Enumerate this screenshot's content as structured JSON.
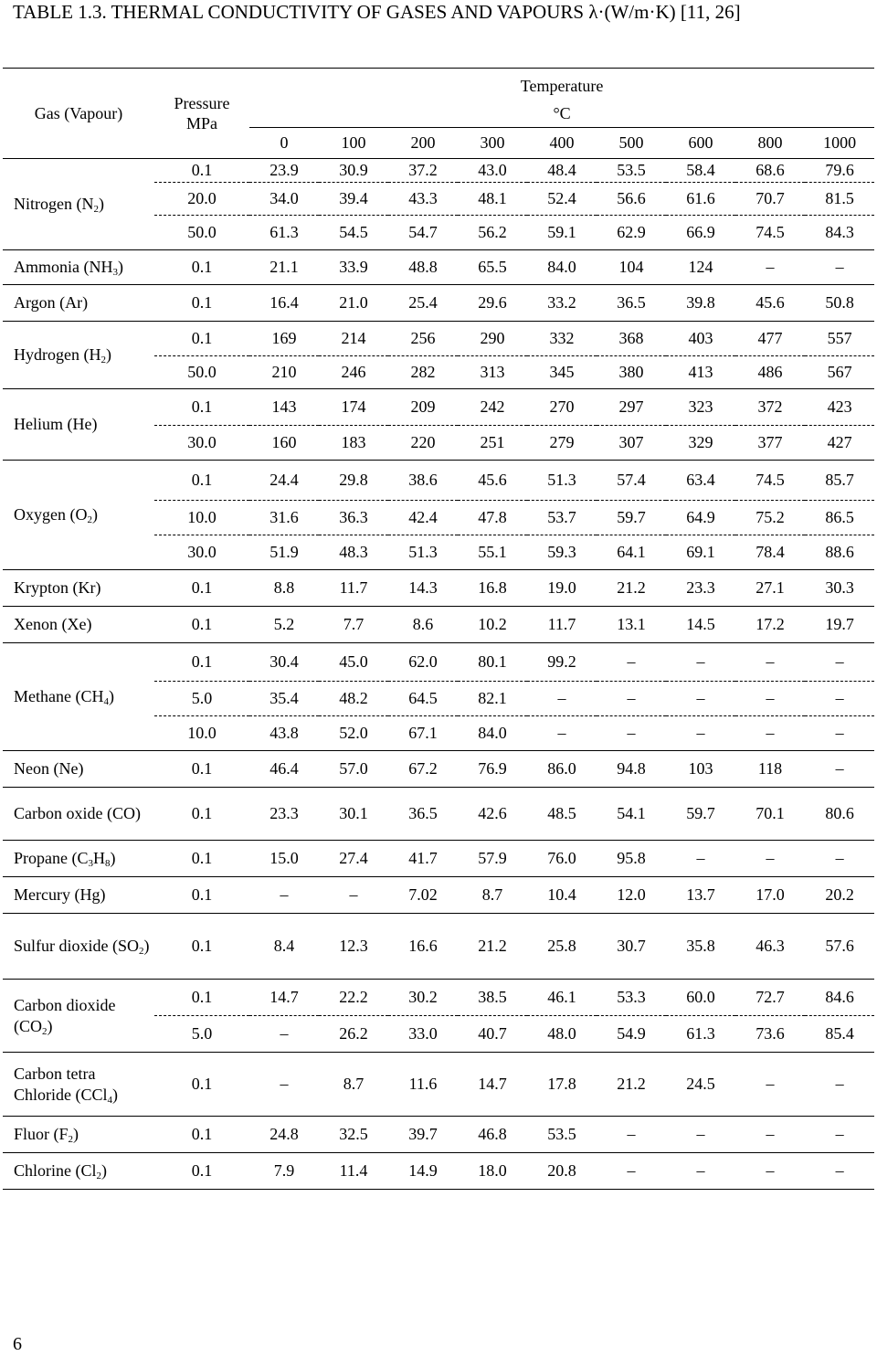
{
  "title": "TABLE 1.3. THERMAL CONDUCTIVITY OF GASES AND VAPOURS λ·(W/m·K) [11, 26]",
  "header": {
    "gas": "Gas (Vapour)",
    "pressure": [
      "Pressure",
      "MPa"
    ],
    "temperature": [
      "Temperature",
      "°C"
    ],
    "temperatures": [
      "0",
      "100",
      "200",
      "300",
      "400",
      "500",
      "600",
      "800",
      "1000"
    ]
  },
  "groups": [
    {
      "name": "Nitrogen (N",
      "sub": "2",
      "suffix": ")",
      "rows": [
        {
          "p": "0.1",
          "v": [
            "23.9",
            "30.9",
            "37.2",
            "43.0",
            "48.4",
            "53.5",
            "58.4",
            "68.6",
            "79.6"
          ]
        },
        {
          "p": "20.0",
          "v": [
            "34.0",
            "39.4",
            "43.3",
            "48.1",
            "52.4",
            "56.6",
            "61.6",
            "70.7",
            "81.5"
          ]
        },
        {
          "p": "50.0",
          "v": [
            "61.3",
            "54.5",
            "54.7",
            "56.2",
            "59.1",
            "62.9",
            "66.9",
            "74.5",
            "84.3"
          ]
        }
      ]
    },
    {
      "name": "Ammonia (NH",
      "sub": "3",
      "suffix": ")",
      "rows": [
        {
          "p": "0.1",
          "v": [
            "21.1",
            "33.9",
            "48.8",
            "65.5",
            "84.0",
            "104",
            "124",
            "–",
            "–"
          ]
        }
      ]
    },
    {
      "name": "Argon (Ar)",
      "rows": [
        {
          "p": "0.1",
          "v": [
            "16.4",
            "21.0",
            "25.4",
            "29.6",
            "33.2",
            "36.5",
            "39.8",
            "45.6",
            "50.8"
          ]
        }
      ]
    },
    {
      "name": "Hydrogen (H",
      "sub": "2",
      "suffix": ")",
      "rows": [
        {
          "p": "0.1",
          "v": [
            "169",
            "214",
            "256",
            "290",
            "332",
            "368",
            "403",
            "477",
            "557"
          ]
        },
        {
          "p": "50.0",
          "v": [
            "210",
            "246",
            "282",
            "313",
            "345",
            "380",
            "413",
            "486",
            "567"
          ]
        }
      ]
    },
    {
      "name": "Helium (He)",
      "rows": [
        {
          "p": "0.1",
          "v": [
            "143",
            "174",
            "209",
            "242",
            "270",
            "297",
            "323",
            "372",
            "423"
          ]
        },
        {
          "p": "30.0",
          "v": [
            "160",
            "183",
            "220",
            "251",
            "279",
            "307",
            "329",
            "377",
            "427"
          ]
        }
      ]
    },
    {
      "name": "Oxygen (O",
      "sub": "2",
      "suffix": ")",
      "rows": [
        {
          "p": "0.1",
          "v": [
            "24.4",
            "29.8",
            "38.6",
            "45.6",
            "51.3",
            "57.4",
            "63.4",
            "74.5",
            "85.7"
          ]
        },
        {
          "p": "10.0",
          "v": [
            "31.6",
            "36.3",
            "42.4",
            "47.8",
            "53.7",
            "59.7",
            "64.9",
            "75.2",
            "86.5"
          ]
        },
        {
          "p": "30.0",
          "v": [
            "51.9",
            "48.3",
            "51.3",
            "55.1",
            "59.3",
            "64.1",
            "69.1",
            "78.4",
            "88.6"
          ]
        }
      ]
    },
    {
      "name": "Krypton (Kr)",
      "rows": [
        {
          "p": "0.1",
          "v": [
            "8.8",
            "11.7",
            "14.3",
            "16.8",
            "19.0",
            "21.2",
            "23.3",
            "27.1",
            "30.3"
          ]
        }
      ]
    },
    {
      "name": "Xenon (Xe)",
      "rows": [
        {
          "p": "0.1",
          "v": [
            "5.2",
            "7.7",
            "8.6",
            "10.2",
            "11.7",
            "13.1",
            "14.5",
            "17.2",
            "19.7"
          ]
        }
      ]
    },
    {
      "name": "Methane (CH",
      "sub": "4",
      "suffix": ")",
      "rows": [
        {
          "p": "0.1",
          "v": [
            "30.4",
            "45.0",
            "62.0",
            "80.1",
            "99.2",
            "–",
            "–",
            "–",
            "–"
          ]
        },
        {
          "p": "5.0",
          "v": [
            "35.4",
            "48.2",
            "64.5",
            "82.1",
            "–",
            "–",
            "–",
            "–",
            "–"
          ]
        },
        {
          "p": "10.0",
          "v": [
            "43.8",
            "52.0",
            "67.1",
            "84.0",
            "–",
            "–",
            "–",
            "–",
            "–"
          ]
        }
      ]
    },
    {
      "name": "Neon (Ne)",
      "rows": [
        {
          "p": "0.1",
          "v": [
            "46.4",
            "57.0",
            "67.2",
            "76.9",
            "86.0",
            "94.8",
            "103",
            "118",
            "–"
          ]
        }
      ]
    },
    {
      "name": "Carbon oxide (CO)",
      "rows": [
        {
          "p": "0.1",
          "v": [
            "23.3",
            "30.1",
            "36.5",
            "42.6",
            "48.5",
            "54.1",
            "59.7",
            "70.1",
            "80.6"
          ]
        }
      ]
    },
    {
      "name": "Propane (C",
      "sub": "3",
      "mid": "H",
      "sub2": "8",
      "suffix": ")",
      "rows": [
        {
          "p": "0.1",
          "v": [
            "15.0",
            "27.4",
            "41.7",
            "57.9",
            "76.0",
            "95.8",
            "–",
            "–",
            "–"
          ]
        }
      ]
    },
    {
      "name": "Mercury (Hg)",
      "rows": [
        {
          "p": "0.1",
          "v": [
            "–",
            "–",
            "7.02",
            "8.7",
            "10.4",
            "12.0",
            "13.7",
            "17.0",
            "20.2"
          ]
        }
      ]
    },
    {
      "name": "Sulfur dioxide (SO",
      "sub": "2",
      "suffix": ")",
      "rows": [
        {
          "p": "0.1",
          "v": [
            "8.4",
            "12.3",
            "16.6",
            "21.2",
            "25.8",
            "30.7",
            "35.8",
            "46.3",
            "57.6"
          ]
        }
      ]
    },
    {
      "name": "Carbon dioxide (CO",
      "sub": "2",
      "suffix": ")",
      "rows": [
        {
          "p": "0.1",
          "v": [
            "14.7",
            "22.2",
            "30.2",
            "38.5",
            "46.1",
            "53.3",
            "60.0",
            "72.7",
            "84.6"
          ]
        },
        {
          "p": "5.0",
          "v": [
            "–",
            "26.2",
            "33.0",
            "40.7",
            "48.0",
            "54.9",
            "61.3",
            "73.6",
            "85.4"
          ]
        }
      ]
    },
    {
      "name": "Carbon tetra Chloride (CCl",
      "sub": "4",
      "suffix": ")",
      "rows": [
        {
          "p": "0.1",
          "v": [
            "–",
            "8.7",
            "11.6",
            "14.7",
            "17.8",
            "21.2",
            "24.5",
            "–",
            "–"
          ]
        }
      ]
    },
    {
      "name": "Fluor (F",
      "sub": "2",
      "suffix": ")",
      "rows": [
        {
          "p": "0.1",
          "v": [
            "24.8",
            "32.5",
            "39.7",
            "46.8",
            "53.5",
            "–",
            "–",
            "–",
            "–"
          ]
        }
      ]
    },
    {
      "name": "Chlorine (Cl",
      "sub": "2",
      "suffix": ")",
      "rows": [
        {
          "p": "0.1",
          "v": [
            "7.9",
            "11.4",
            "14.9",
            "18.0",
            "20.8",
            "–",
            "–",
            "–",
            "–"
          ]
        }
      ]
    }
  ],
  "page_number": "6"
}
